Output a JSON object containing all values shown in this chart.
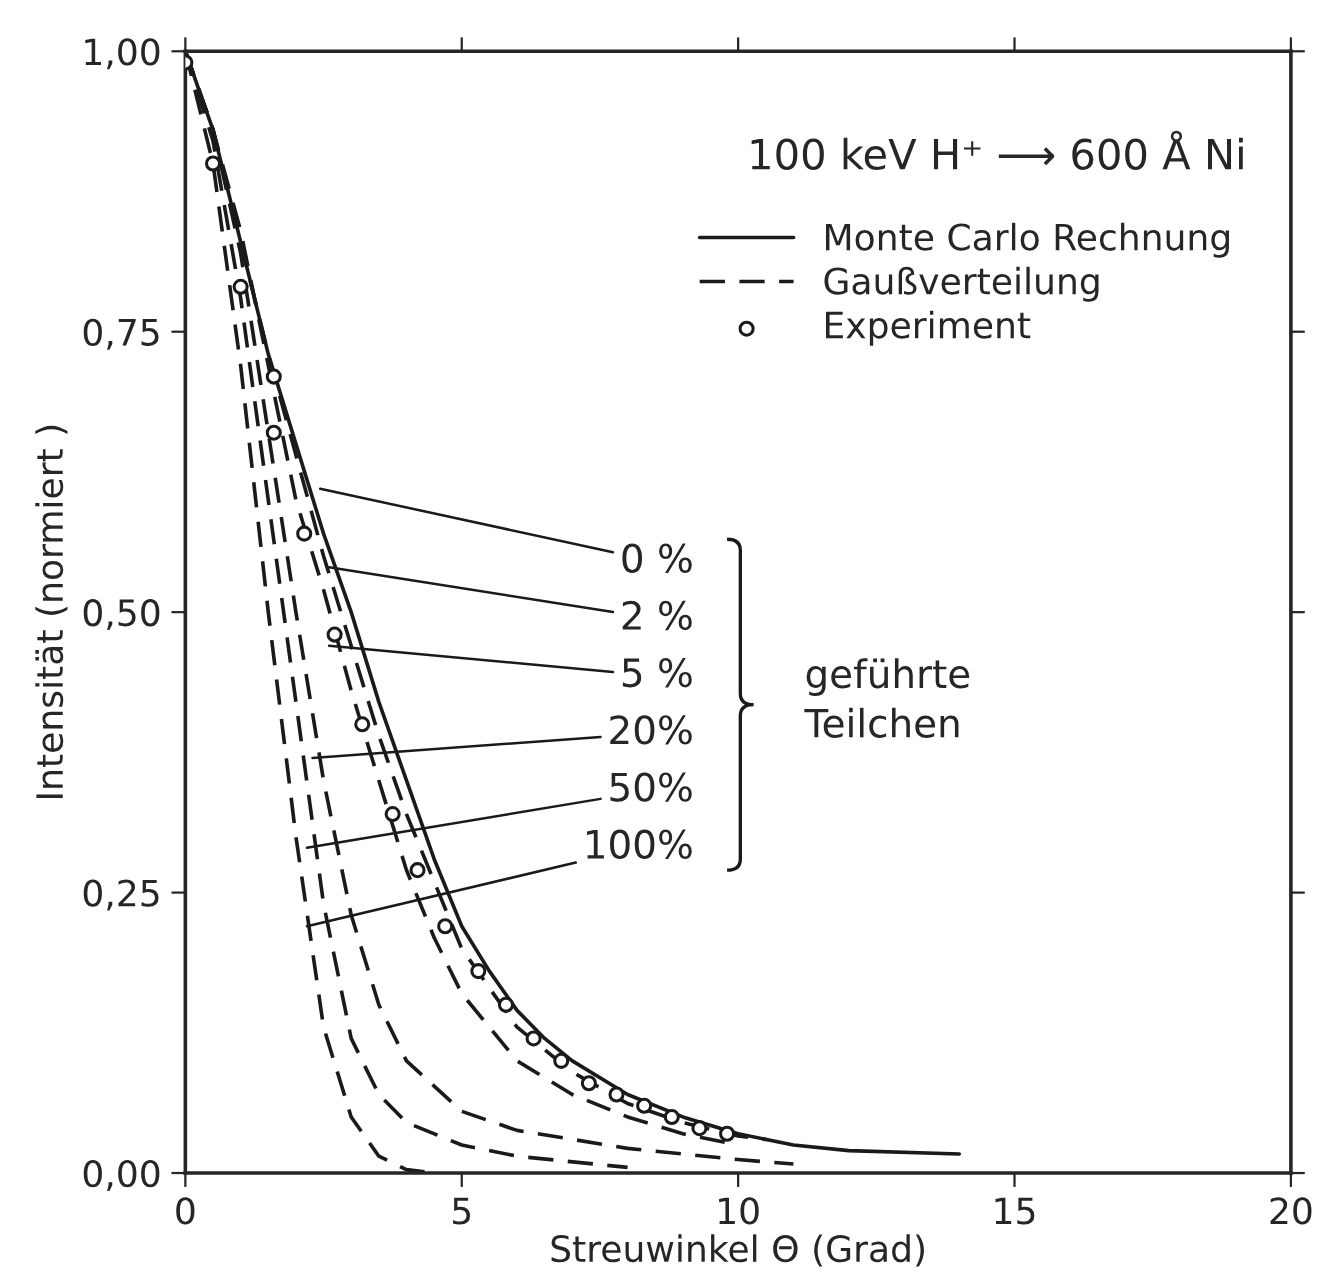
{
  "chart_data": {
    "type": "line",
    "title": "100 keV H⁺ ⟶ 600 Å Ni",
    "xlabel": "Streuwinkel Θ (Grad)",
    "ylabel": "Intensität (normiert )",
    "xlim": [
      0,
      20
    ],
    "xticks": [
      0,
      5,
      10,
      15,
      20
    ],
    "ylim": [
      0,
      1
    ],
    "yticks": [
      {
        "value": 0,
        "label": "0,00"
      },
      {
        "value": 0.25,
        "label": "0,25"
      },
      {
        "value": 0.5,
        "label": "0,50"
      },
      {
        "value": 0.75,
        "label": "0,75"
      },
      {
        "value": 1,
        "label": "1,00"
      }
    ],
    "grid": false,
    "legend": "top right",
    "color": "#1a1a1a",
    "series": [
      {
        "name": "Monte Carlo Rechnung",
        "line_style": "solid",
        "marker": "none",
        "x": [
          0,
          0.5,
          1,
          1.5,
          2,
          2.5,
          3,
          3.5,
          4,
          4.5,
          5,
          5.5,
          6,
          6.5,
          7,
          8,
          9,
          10,
          11,
          12,
          14
        ],
        "values": [
          1.0,
          0.93,
          0.83,
          0.73,
          0.65,
          0.57,
          0.5,
          0.42,
          0.35,
          0.28,
          0.22,
          0.18,
          0.145,
          0.12,
          0.1,
          0.07,
          0.05,
          0.035,
          0.025,
          0.02,
          0.017
        ]
      },
      {
        "name": "Gaußverteilung",
        "line_style": "dashed",
        "marker": "none",
        "x": [
          0,
          0.5,
          1,
          1.5,
          2,
          2.5,
          3,
          3.5,
          4,
          4.5,
          5,
          6,
          7,
          8,
          9,
          10,
          10.5
        ],
        "values": [
          1.0,
          0.93,
          0.83,
          0.73,
          0.64,
          0.55,
          0.47,
          0.39,
          0.32,
          0.26,
          0.2,
          0.13,
          0.09,
          0.062,
          0.045,
          0.033,
          0.03
        ]
      },
      {
        "line_style": "dashed",
        "marker": "none",
        "x": [
          0,
          0.5,
          1,
          1.5,
          2,
          2.5,
          3,
          3.5,
          4,
          4.5,
          5,
          6,
          7,
          8,
          9,
          10
        ],
        "values": [
          1.0,
          0.93,
          0.84,
          0.72,
          0.6,
          0.52,
          0.43,
          0.35,
          0.27,
          0.21,
          0.16,
          0.1,
          0.07,
          0.05,
          0.035,
          0.025
        ]
      },
      {
        "line_style": "dashed",
        "marker": "none",
        "x": [
          0,
          0.5,
          1,
          1.5,
          2,
          2.5,
          3,
          3.5,
          4,
          5,
          6,
          8,
          10,
          11
        ],
        "values": [
          1.0,
          0.93,
          0.82,
          0.66,
          0.5,
          0.35,
          0.23,
          0.15,
          0.1,
          0.055,
          0.038,
          0.022,
          0.012,
          0.008
        ]
      },
      {
        "line_style": "dashed",
        "marker": "none",
        "x": [
          0,
          0.5,
          1,
          1.5,
          2,
          2.5,
          3,
          3.5,
          4,
          5,
          6,
          8
        ],
        "values": [
          1.0,
          0.92,
          0.78,
          0.6,
          0.42,
          0.24,
          0.12,
          0.07,
          0.045,
          0.025,
          0.015,
          0.005
        ]
      },
      {
        "line_style": "dashed",
        "marker": "none",
        "x": [
          0,
          0.5,
          1,
          1.5,
          2,
          2.5,
          3,
          3.5,
          4,
          4.5
        ],
        "values": [
          1.0,
          0.9,
          0.72,
          0.5,
          0.3,
          0.13,
          0.05,
          0.015,
          0.003,
          0
        ]
      },
      {
        "name": "Experiment",
        "type": "scatter",
        "marker": "circle",
        "x": [
          0,
          0.5,
          1.0,
          1.6,
          1.6,
          2.15,
          2.7,
          3.2,
          3.75,
          4.2,
          4.7,
          5.3,
          5.8,
          6.3,
          6.8,
          7.3,
          7.8,
          8.3,
          8.8,
          9.3,
          9.8
        ],
        "values": [
          0.99,
          0.9,
          0.79,
          0.71,
          0.66,
          0.57,
          0.48,
          0.4,
          0.32,
          0.27,
          0.22,
          0.18,
          0.15,
          0.12,
          0.1,
          0.08,
          0.07,
          0.06,
          0.05,
          0.04,
          0.035
        ]
      }
    ],
    "annotations": [
      {
        "text": "0 %",
        "x": 2.44,
        "y": 0.61
      },
      {
        "text": "2 %",
        "x": 2.6,
        "y": 0.54
      },
      {
        "text": "5 %",
        "x": 2.6,
        "y": 0.47
      },
      {
        "text": "20%",
        "x": 2.3,
        "y": 0.37
      },
      {
        "text": "50%",
        "x": 2.2,
        "y": 0.29
      },
      {
        "text": "100%",
        "x": 2.2,
        "y": 0.22
      },
      "geführte\nTeilchen"
    ]
  }
}
